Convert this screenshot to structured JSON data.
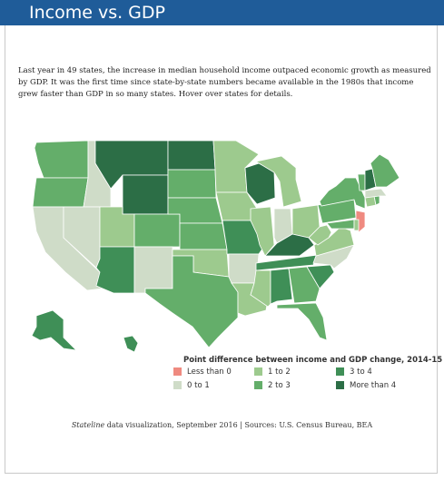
{
  "header": {
    "title": "Income vs. GDP"
  },
  "intro": {
    "text": "Last year in 49 states, the increase in median household income outpaced economic growth as measured by GDP. It was the first time since state-by-state numbers became available in the 1980s that income grew faster than GDP in so many states. Hover over states for details."
  },
  "colors": {
    "less_than_0": "#ef8a80",
    "0_to_1": "#cfdcc8",
    "1_to_2": "#9dca8e",
    "2_to_3": "#64ae6a",
    "3_to_4": "#3f8f57",
    "more_than_4": "#2c6e46"
  },
  "legend": {
    "title": "Point difference between income and GDP change, 2014-15",
    "items": [
      {
        "label": "Less than 0",
        "color": "#ef8a80"
      },
      {
        "label": "1 to 2",
        "color": "#9dca8e"
      },
      {
        "label": "3 to 4",
        "color": "#3f8f57"
      },
      {
        "label": "0 to 1",
        "color": "#cfdcc8"
      },
      {
        "label": "2 to 3",
        "color": "#64ae6a"
      },
      {
        "label": "More than 4",
        "color": "#2c6e46"
      }
    ]
  },
  "footer": {
    "source_italic": "Stateline",
    "source_rest": " data visualization, September 2016 | Sources: U.S. Census Bureau, BEA"
  },
  "map_data": {
    "states": [
      {
        "id": "WA",
        "bin": "2_to_3"
      },
      {
        "id": "OR",
        "bin": "2_to_3"
      },
      {
        "id": "CA",
        "bin": "0_to_1"
      },
      {
        "id": "ID",
        "bin": "0_to_1"
      },
      {
        "id": "NV",
        "bin": "0_to_1"
      },
      {
        "id": "MT",
        "bin": "more_than_4"
      },
      {
        "id": "WY",
        "bin": "more_than_4"
      },
      {
        "id": "UT",
        "bin": "1_to_2"
      },
      {
        "id": "AZ",
        "bin": "3_to_4"
      },
      {
        "id": "CO",
        "bin": "2_to_3"
      },
      {
        "id": "NM",
        "bin": "0_to_1"
      },
      {
        "id": "ND",
        "bin": "more_than_4"
      },
      {
        "id": "SD",
        "bin": "2_to_3"
      },
      {
        "id": "NE",
        "bin": "2_to_3"
      },
      {
        "id": "KS",
        "bin": "2_to_3"
      },
      {
        "id": "OK",
        "bin": "1_to_2"
      },
      {
        "id": "TX",
        "bin": "2_to_3"
      },
      {
        "id": "MN",
        "bin": "1_to_2"
      },
      {
        "id": "IA",
        "bin": "1_to_2"
      },
      {
        "id": "MO",
        "bin": "3_to_4"
      },
      {
        "id": "AR",
        "bin": "0_to_1"
      },
      {
        "id": "LA",
        "bin": "1_to_2"
      },
      {
        "id": "WI",
        "bin": "more_than_4"
      },
      {
        "id": "IL",
        "bin": "1_to_2"
      },
      {
        "id": "MI",
        "bin": "1_to_2"
      },
      {
        "id": "IN",
        "bin": "0_to_1"
      },
      {
        "id": "OH",
        "bin": "1_to_2"
      },
      {
        "id": "KY",
        "bin": "more_than_4"
      },
      {
        "id": "TN",
        "bin": "3_to_4"
      },
      {
        "id": "MS",
        "bin": "1_to_2"
      },
      {
        "id": "AL",
        "bin": "3_to_4"
      },
      {
        "id": "GA",
        "bin": "2_to_3"
      },
      {
        "id": "FL",
        "bin": "2_to_3"
      },
      {
        "id": "SC",
        "bin": "3_to_4"
      },
      {
        "id": "NC",
        "bin": "0_to_1"
      },
      {
        "id": "VA",
        "bin": "1_to_2"
      },
      {
        "id": "WV",
        "bin": "1_to_2"
      },
      {
        "id": "PA",
        "bin": "2_to_3"
      },
      {
        "id": "NY",
        "bin": "2_to_3"
      },
      {
        "id": "NJ",
        "bin": "less_than_0"
      },
      {
        "id": "MD",
        "bin": "2_to_3"
      },
      {
        "id": "DE",
        "bin": "1_to_2"
      },
      {
        "id": "CT",
        "bin": "1_to_2"
      },
      {
        "id": "RI",
        "bin": "2_to_3"
      },
      {
        "id": "MA",
        "bin": "0_to_1"
      },
      {
        "id": "VT",
        "bin": "2_to_3"
      },
      {
        "id": "NH",
        "bin": "more_than_4"
      },
      {
        "id": "ME",
        "bin": "2_to_3"
      },
      {
        "id": "AK",
        "bin": "3_to_4"
      },
      {
        "id": "HI",
        "bin": "3_to_4"
      }
    ]
  }
}
